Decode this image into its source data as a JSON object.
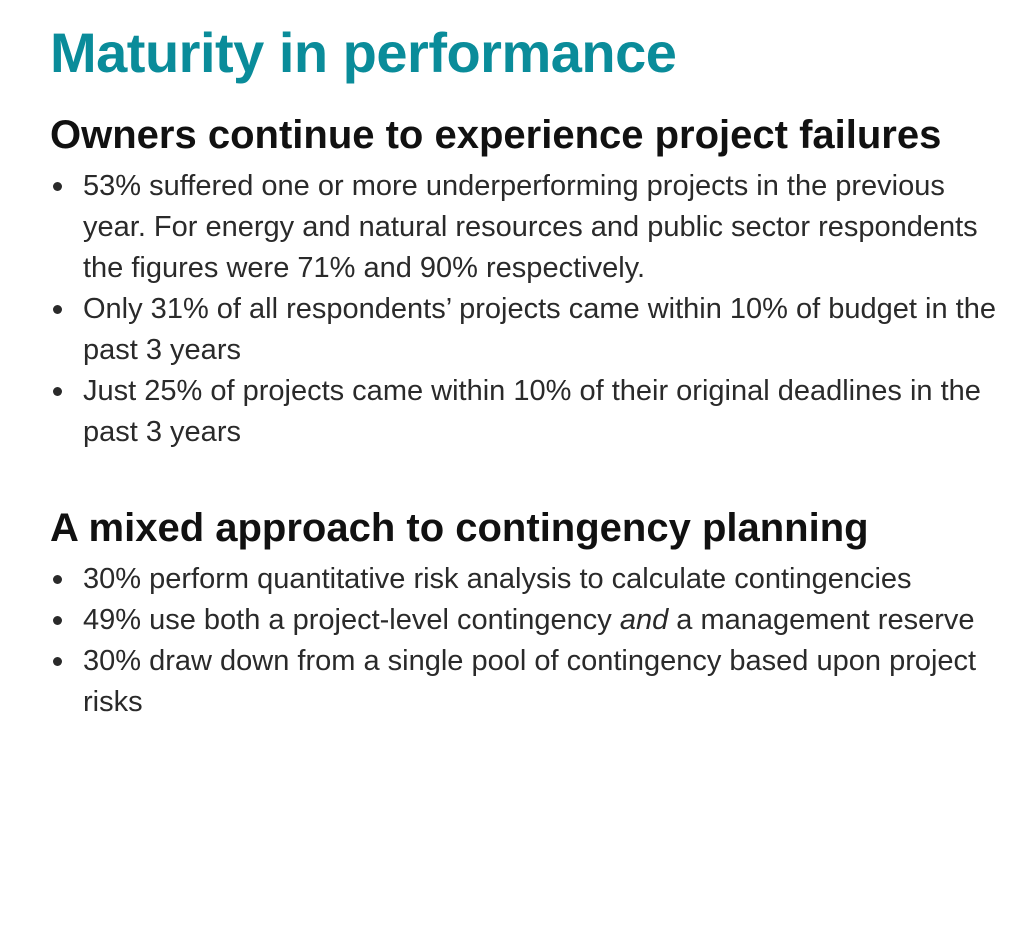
{
  "title": "Maturity in performance",
  "sections": [
    {
      "heading": "Owners continue to experience project failures",
      "bullets": [
        {
          "text": "53% suffered one or more underperforming projects in the previous year. For energy and natural resources and public sector respondents the figures were 71% and 90% respectively."
        },
        {
          "text": "Only 31% of all respondents’ projects came within 10% of budget in the past 3 years"
        },
        {
          "text": "Just 25% of projects came within 10% of their original deadlines in the past 3 years"
        }
      ]
    },
    {
      "heading": "A mixed approach to contingency planning",
      "bullets": [
        {
          "text": "30% perform quantitative risk analysis to calculate contingencies"
        },
        {
          "text_before": "49% use both a project-level contingency ",
          "text_em": "and",
          "text_after": " a management reserve"
        },
        {
          "text": "30% draw down from a single pool of contingency based upon project risks"
        }
      ]
    }
  ]
}
